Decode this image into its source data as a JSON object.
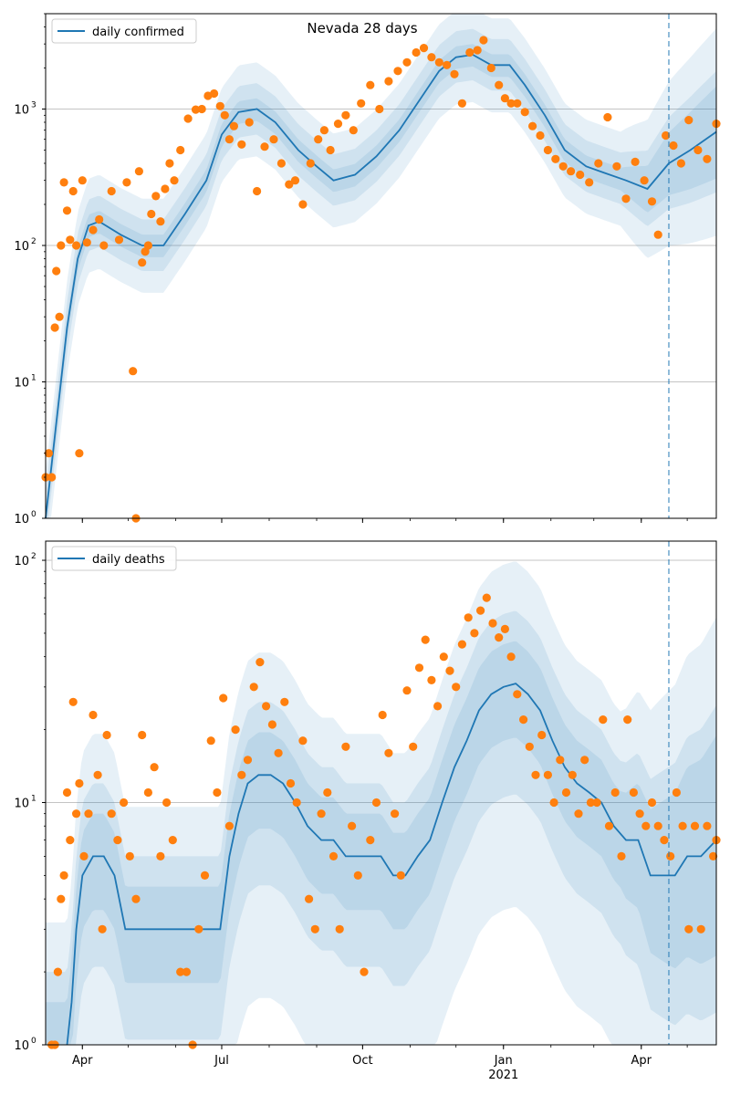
{
  "chart_data": [
    {
      "type": "line",
      "title": "Nevada 28 days",
      "yscale": "log",
      "ylim": [
        1,
        5000
      ],
      "grid": "horizontal",
      "legend_position": "top-left",
      "y_ticks": [
        {
          "value": 1,
          "base": "10",
          "exp": "0"
        },
        {
          "value": 10,
          "base": "10",
          "exp": "1"
        },
        {
          "value": 100,
          "base": "10",
          "exp": "2"
        },
        {
          "value": 1000,
          "base": "10",
          "exp": "3"
        }
      ],
      "forecast_start": "2021-04-19",
      "series": [
        {
          "name": "daily confirmed",
          "kind": "line",
          "color": "#1f77b4",
          "x": [
            "2020-03-08",
            "2020-03-15",
            "2020-03-22",
            "2020-03-29",
            "2020-04-05",
            "2020-04-12",
            "2020-04-26",
            "2020-05-10",
            "2020-05-24",
            "2020-06-07",
            "2020-06-21",
            "2020-07-01",
            "2020-07-12",
            "2020-07-24",
            "2020-08-05",
            "2020-08-20",
            "2020-09-01",
            "2020-09-12",
            "2020-09-26",
            "2020-10-10",
            "2020-10-25",
            "2020-11-08",
            "2020-11-20",
            "2020-12-01",
            "2020-12-12",
            "2020-12-24",
            "2021-01-05",
            "2021-01-15",
            "2021-01-28",
            "2021-02-10",
            "2021-02-24",
            "2021-03-08",
            "2021-03-22",
            "2021-04-05",
            "2021-04-19",
            "2021-05-03",
            "2021-05-20"
          ],
          "y": [
            1,
            5,
            25,
            80,
            140,
            150,
            120,
            100,
            100,
            170,
            300,
            650,
            950,
            1000,
            800,
            500,
            380,
            300,
            330,
            450,
            700,
            1200,
            1900,
            2400,
            2500,
            2100,
            2100,
            1500,
            900,
            500,
            380,
            340,
            300,
            260,
            400,
            500,
            680
          ]
        },
        {
          "name": "",
          "kind": "scatter",
          "color": "#ff7f0e",
          "x": [
            "2020-03-08",
            "2020-03-10",
            "2020-03-12",
            "2020-03-14",
            "2020-03-15",
            "2020-03-17",
            "2020-03-18",
            "2020-03-20",
            "2020-03-22",
            "2020-03-24",
            "2020-03-26",
            "2020-03-28",
            "2020-03-30",
            "2020-04-01",
            "2020-04-04",
            "2020-04-08",
            "2020-04-12",
            "2020-04-15",
            "2020-04-20",
            "2020-04-25",
            "2020-04-30",
            "2020-05-04",
            "2020-05-06",
            "2020-05-08",
            "2020-05-10",
            "2020-05-12",
            "2020-05-14",
            "2020-05-16",
            "2020-05-19",
            "2020-05-22",
            "2020-05-25",
            "2020-05-28",
            "2020-05-31",
            "2020-06-04",
            "2020-06-09",
            "2020-06-14",
            "2020-06-18",
            "2020-06-22",
            "2020-06-26",
            "2020-06-30",
            "2020-07-03",
            "2020-07-06",
            "2020-07-09",
            "2020-07-14",
            "2020-07-19",
            "2020-07-24",
            "2020-07-29",
            "2020-08-04",
            "2020-08-09",
            "2020-08-14",
            "2020-08-18",
            "2020-08-23",
            "2020-08-28",
            "2020-09-02",
            "2020-09-06",
            "2020-09-10",
            "2020-09-15",
            "2020-09-20",
            "2020-09-25",
            "2020-09-30",
            "2020-10-06",
            "2020-10-12",
            "2020-10-18",
            "2020-10-24",
            "2020-10-30",
            "2020-11-05",
            "2020-11-10",
            "2020-11-15",
            "2020-11-20",
            "2020-11-25",
            "2020-11-30",
            "2020-12-05",
            "2020-12-10",
            "2020-12-15",
            "2020-12-19",
            "2020-12-24",
            "2020-12-29",
            "2021-01-02",
            "2021-01-06",
            "2021-01-10",
            "2021-01-15",
            "2021-01-20",
            "2021-01-25",
            "2021-01-30",
            "2021-02-04",
            "2021-02-09",
            "2021-02-14",
            "2021-02-20",
            "2021-02-26",
            "2021-03-04",
            "2021-03-10",
            "2021-03-16",
            "2021-03-22",
            "2021-03-28",
            "2021-04-03",
            "2021-04-08",
            "2021-04-12",
            "2021-04-17",
            "2021-04-22",
            "2021-04-27",
            "2021-05-02",
            "2021-05-08",
            "2021-05-14",
            "2021-05-20"
          ],
          "y": [
            2,
            3,
            2,
            25,
            65,
            30,
            100,
            290,
            180,
            110,
            250,
            100,
            3,
            300,
            105,
            130,
            155,
            100,
            250,
            110,
            290,
            12,
            1,
            350,
            75,
            90,
            100,
            170,
            230,
            150,
            260,
            400,
            300,
            500,
            850,
            990,
            1000,
            1250,
            1300,
            1050,
            900,
            600,
            750,
            550,
            800,
            250,
            530,
            600,
            400,
            280,
            300,
            200,
            400,
            600,
            700,
            500,
            780,
            900,
            700,
            1100,
            1500,
            1000,
            1600,
            1900,
            2200,
            2600,
            2800,
            2400,
            2200,
            2100,
            1800,
            1100,
            2600,
            2700,
            3200,
            2000,
            1500,
            1200,
            1100,
            1100,
            950,
            750,
            640,
            500,
            430,
            380,
            350,
            330,
            290,
            400,
            870,
            380,
            220,
            410,
            300,
            210,
            120,
            640,
            540,
            400,
            830,
            500,
            430,
            780
          ]
        }
      ]
    },
    {
      "type": "line",
      "yscale": "log",
      "ylim": [
        1,
        120
      ],
      "grid": "horizontal",
      "legend_position": "top-left",
      "y_ticks": [
        {
          "value": 1,
          "base": "10",
          "exp": "0"
        },
        {
          "value": 10,
          "base": "10",
          "exp": "1"
        },
        {
          "value": 100,
          "base": "10",
          "exp": "2"
        }
      ],
      "x_ticks": [
        {
          "date": "2020-04-01",
          "label": "Apr",
          "sublabel": ""
        },
        {
          "date": "2020-07-01",
          "label": "Jul",
          "sublabel": ""
        },
        {
          "date": "2020-10-01",
          "label": "Oct",
          "sublabel": ""
        },
        {
          "date": "2021-01-01",
          "label": "Jan",
          "sublabel": "2021"
        },
        {
          "date": "2021-04-01",
          "label": "Apr",
          "sublabel": ""
        }
      ],
      "forecast_start": "2021-04-19",
      "series": [
        {
          "name": "daily deaths",
          "kind": "line",
          "color": "#1f77b4",
          "x": [
            "2020-03-22",
            "2020-03-25",
            "2020-03-28",
            "2020-04-01",
            "2020-04-08",
            "2020-04-15",
            "2020-04-22",
            "2020-04-29",
            "2020-05-06",
            "2020-05-13",
            "2020-05-20",
            "2020-05-27",
            "2020-06-03",
            "2020-06-12",
            "2020-06-21",
            "2020-06-30",
            "2020-07-06",
            "2020-07-12",
            "2020-07-18",
            "2020-07-25",
            "2020-08-02",
            "2020-08-10",
            "2020-08-18",
            "2020-08-26",
            "2020-09-04",
            "2020-09-12",
            "2020-09-20",
            "2020-09-28",
            "2020-10-05",
            "2020-10-13",
            "2020-10-21",
            "2020-10-29",
            "2020-11-06",
            "2020-11-14",
            "2020-11-22",
            "2020-11-30",
            "2020-12-08",
            "2020-12-16",
            "2020-12-24",
            "2021-01-01",
            "2021-01-09",
            "2021-01-17",
            "2021-01-25",
            "2021-02-02",
            "2021-02-10",
            "2021-02-18",
            "2021-02-26",
            "2021-03-06",
            "2021-03-14",
            "2021-03-22",
            "2021-03-30",
            "2021-04-07",
            "2021-04-15",
            "2021-04-23",
            "2021-05-01",
            "2021-05-10",
            "2021-05-20"
          ],
          "y": [
            1,
            1.5,
            3,
            5,
            6,
            6,
            5,
            3,
            3,
            3,
            3,
            3,
            3,
            3,
            3,
            3,
            6,
            9,
            12,
            13,
            13,
            12,
            10,
            8,
            7,
            7,
            6,
            6,
            6,
            6,
            5,
            5,
            6,
            7,
            10,
            14,
            18,
            24,
            28,
            30,
            31,
            28,
            24,
            18,
            14,
            12,
            11,
            10,
            8,
            7,
            7,
            5,
            5,
            5,
            6,
            6,
            7
          ]
        },
        {
          "name": "",
          "kind": "scatter",
          "color": "#ff7f0e",
          "x": [
            "2020-03-12",
            "2020-03-14",
            "2020-03-16",
            "2020-03-18",
            "2020-03-20",
            "2020-03-22",
            "2020-03-24",
            "2020-03-26",
            "2020-03-28",
            "2020-03-30",
            "2020-04-02",
            "2020-04-05",
            "2020-04-08",
            "2020-04-11",
            "2020-04-14",
            "2020-04-17",
            "2020-04-20",
            "2020-04-24",
            "2020-04-28",
            "2020-05-02",
            "2020-05-06",
            "2020-05-10",
            "2020-05-14",
            "2020-05-18",
            "2020-05-22",
            "2020-05-26",
            "2020-05-30",
            "2020-06-04",
            "2020-06-08",
            "2020-06-12",
            "2020-06-16",
            "2020-06-20",
            "2020-06-24",
            "2020-06-28",
            "2020-07-02",
            "2020-07-06",
            "2020-07-10",
            "2020-07-14",
            "2020-07-18",
            "2020-07-22",
            "2020-07-26",
            "2020-07-30",
            "2020-08-03",
            "2020-08-07",
            "2020-08-11",
            "2020-08-15",
            "2020-08-19",
            "2020-08-23",
            "2020-08-27",
            "2020-08-31",
            "2020-09-04",
            "2020-09-08",
            "2020-09-12",
            "2020-09-16",
            "2020-09-20",
            "2020-09-24",
            "2020-09-28",
            "2020-10-02",
            "2020-10-06",
            "2020-10-10",
            "2020-10-14",
            "2020-10-18",
            "2020-10-22",
            "2020-10-26",
            "2020-10-30",
            "2020-11-03",
            "2020-11-07",
            "2020-11-11",
            "2020-11-15",
            "2020-11-19",
            "2020-11-23",
            "2020-11-27",
            "2020-12-01",
            "2020-12-05",
            "2020-12-09",
            "2020-12-13",
            "2020-12-17",
            "2020-12-21",
            "2020-12-25",
            "2020-12-29",
            "2021-01-02",
            "2021-01-06",
            "2021-01-10",
            "2021-01-14",
            "2021-01-18",
            "2021-01-22",
            "2021-01-26",
            "2021-01-30",
            "2021-02-03",
            "2021-02-07",
            "2021-02-11",
            "2021-02-15",
            "2021-02-19",
            "2021-02-23",
            "2021-02-27",
            "2021-03-03",
            "2021-03-07",
            "2021-03-11",
            "2021-03-15",
            "2021-03-19",
            "2021-03-23",
            "2021-03-27",
            "2021-03-31",
            "2021-04-04",
            "2021-04-08",
            "2021-04-12",
            "2021-04-16",
            "2021-04-20",
            "2021-04-24",
            "2021-04-28",
            "2021-05-02",
            "2021-05-06",
            "2021-05-10",
            "2021-05-14",
            "2021-05-18",
            "2021-05-20"
          ],
          "y": [
            1,
            1,
            2,
            4,
            5,
            11,
            7,
            26,
            9,
            12,
            6,
            9,
            23,
            13,
            3,
            19,
            9,
            7,
            10,
            6,
            4,
            19,
            11,
            14,
            6,
            10,
            7,
            2,
            2,
            1,
            3,
            5,
            18,
            11,
            27,
            8,
            20,
            13,
            15,
            30,
            38,
            25,
            21,
            16,
            26,
            12,
            10,
            18,
            4,
            3,
            9,
            11,
            6,
            3,
            17,
            8,
            5,
            2,
            7,
            10,
            23,
            16,
            9,
            5,
            29,
            17,
            36,
            47,
            32,
            25,
            40,
            35,
            30,
            45,
            58,
            50,
            62,
            70,
            55,
            48,
            52,
            40,
            28,
            22,
            17,
            13,
            19,
            13,
            10,
            15,
            11,
            13,
            9,
            15,
            10,
            10,
            22,
            8,
            11,
            6,
            22,
            11,
            9,
            8,
            10,
            8,
            7,
            6,
            11,
            8,
            3,
            8,
            3,
            8,
            6,
            7
          ]
        }
      ]
    }
  ]
}
